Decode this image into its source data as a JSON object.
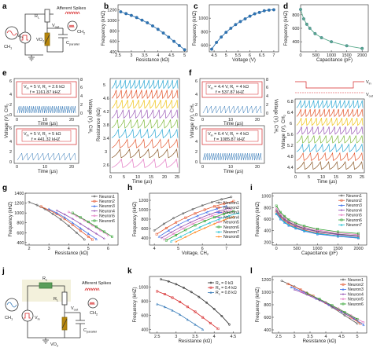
{
  "panel_labels": [
    "a",
    "b",
    "c",
    "d",
    "e",
    "f",
    "g",
    "h",
    "i",
    "j",
    "k",
    "l"
  ],
  "circuit_a": {
    "rl": "R",
    "rl_sub": "L",
    "vout": "V",
    "vout_sub": "out",
    "ch1": "CH",
    "ch1_sub": "1",
    "ch2": "CH",
    "ch2_sub": "2",
    "vin": "V",
    "vin_sub": "in",
    "vo2": "VO",
    "vo2_sub": "2",
    "cpar": "C",
    "cpar_sub": "parallel",
    "afferent": "Afferent Spikes"
  },
  "circuit_j": {
    "rc": "R",
    "rc_sub": "c",
    "rl": "R",
    "rl_sub": "L",
    "vout": "V",
    "vout_sub": "out",
    "ch1": "CH",
    "ch1_sub": "1",
    "ch2": "CH",
    "ch2_sub": "2",
    "vin": "V",
    "vin_sub": "in",
    "vo2": "VO",
    "vo2_sub": "2",
    "cpar": "C",
    "cpar_sub": "parallel",
    "afferent": "Afferent Spikes"
  },
  "panel_e": {
    "top": {
      "line1": "V",
      "line1_sub": "in",
      "line1_rest": " = 5 V, R",
      "line1_sub2": "L",
      "line1_rest2": " = 2.6 kΩ",
      "line2": "f = 1161.87 kHZ"
    },
    "bottom": {
      "line1": "V",
      "line1_sub": "in",
      "line1_rest": " = 5 V, R",
      "line1_sub2": "L",
      "line1_rest2": " = 5 kΩ",
      "line2": "f = 441.32 kHZ"
    },
    "ylabel_left": "Voltage (V), CH",
    "ylabel_left_sub": "2",
    "ylabel_right": "Voltage (V), CH",
    "ylabel_right_sub": "1",
    "xlabel": "Time (μs)",
    "yticks": [
      "6",
      "4",
      "2",
      "0"
    ],
    "yticks_right": [
      "8",
      "6",
      "4",
      "2",
      "0"
    ],
    "xticks": [
      "0",
      "10",
      "20"
    ],
    "stack_ylabel": "Resistance (kΩ)",
    "stack_yticks": [
      "5",
      "4.6",
      "4.2",
      "3.8",
      "3.4",
      "3",
      "2.6"
    ],
    "stack_xticks": [
      "0",
      "5",
      "10",
      "15",
      "20",
      "25"
    ],
    "stack_xlabel": "Time (μs)"
  },
  "panel_f": {
    "top": {
      "line1": "V",
      "line1_sub": "in",
      "line1_rest": " = 4.4 V, R",
      "line1_sub2": "L",
      "line1_rest2": " = 4 kΩ",
      "line2": "f = 537.87 kHZ"
    },
    "bottom": {
      "line1": "V",
      "line1_sub": "in",
      "line1_rest": " = 6.4 V, R",
      "line1_sub2": "L",
      "line1_rest2": " = 4 kΩ",
      "line2": "f = 1085.87 kHZ"
    },
    "ylabel_left": "Voltage (V), CH",
    "ylabel_left_sub": "2",
    "ylabel_right": "Voltage (V), CH",
    "ylabel_right_sub": "1",
    "xlabel": "Time (μs)",
    "yticks": [
      "6",
      "4",
      "2",
      "0"
    ],
    "yticks_right": [
      "8",
      "6",
      "4",
      "2",
      "0"
    ],
    "xticks": [
      "0",
      "10",
      "20"
    ],
    "stack_ylabel": "Voltage (V), CH",
    "stack_ylabel_sub": "2",
    "stack_yticks": [
      "6.8",
      "6.4",
      "6",
      "5.6",
      "5.2",
      "4.8",
      "4.4"
    ],
    "stack_xticks": [
      "0",
      "5",
      "10",
      "15",
      "20",
      "25"
    ],
    "stack_xlabel": "Time (μs)",
    "vin_tag": "V",
    "vin_tag_sub": "in",
    "vout_tag": "V",
    "vout_tag_sub": "out"
  },
  "colors": {
    "blue": "#2e75b6",
    "red": "#d62728",
    "teal": "#5aaa8c",
    "spike_colors": [
      "#2ca8d4",
      "#e4572e",
      "#f0c419",
      "#9b59b6",
      "#7fba3c",
      "#2ca8d4",
      "#e4572e",
      "#8b5a2b",
      "#e377c2"
    ],
    "neuron_colors": [
      "#555555",
      "#e4572e",
      "#3a6ee8",
      "#8e44ad",
      "#e377c2",
      "#2ca02c",
      "#17becf",
      "#ff7f0e"
    ]
  },
  "chart_data": [
    {
      "panel": "b",
      "type": "line",
      "xlabel": "Resistance (kΩ)",
      "ylabel": "Frequency (kHZ)",
      "xlim": [
        2.5,
        5.1
      ],
      "ylim": [
        400,
        1300
      ],
      "xticks": [
        2.5,
        3,
        3.5,
        4,
        4.5,
        5
      ],
      "yticks": [
        400,
        600,
        800,
        1000,
        1200
      ],
      "x": [
        2.6,
        2.8,
        3.0,
        3.2,
        3.4,
        3.6,
        3.8,
        4.0,
        4.2,
        4.4,
        4.6,
        4.8,
        5.0
      ],
      "y": [
        1165,
        1130,
        1095,
        1055,
        1005,
        955,
        895,
        830,
        760,
        680,
        600,
        520,
        440
      ]
    },
    {
      "panel": "c",
      "type": "line",
      "xlabel": "Voltage (V)",
      "ylabel": "Frequency (kHZ)",
      "xlim": [
        4.3,
        7.2
      ],
      "ylim": [
        500,
        1200
      ],
      "xticks": [
        4.5,
        5,
        5.5,
        6,
        6.5,
        7
      ],
      "yticks": [
        600,
        800,
        1000
      ],
      "x": [
        4.4,
        4.6,
        4.8,
        5.0,
        5.2,
        5.4,
        5.6,
        5.8,
        6.0,
        6.2,
        6.4,
        6.6,
        6.8,
        7.0
      ],
      "y": [
        540,
        640,
        720,
        790,
        850,
        905,
        950,
        990,
        1030,
        1065,
        1085,
        1110,
        1120,
        1125
      ]
    },
    {
      "panel": "d",
      "type": "line",
      "xlabel": "Capacitance (pF)",
      "ylabel": "Frequency (kHZ)",
      "xlim": [
        0,
        2200
      ],
      "ylim": [
        250,
        950
      ],
      "xticks": [
        0,
        500,
        1000,
        1500,
        2000
      ],
      "yticks": [
        400,
        600,
        800
      ],
      "x": [
        0,
        100,
        200,
        300,
        470,
        680,
        1000,
        1500,
        2000
      ],
      "y": [
        880,
        740,
        660,
        600,
        520,
        460,
        400,
        340,
        300
      ]
    },
    {
      "panel": "g",
      "type": "line",
      "xlabel": "Resistance (kΩ)",
      "ylabel": "Frequency (kHZ)",
      "xlim": [
        1.8,
        6.5
      ],
      "ylim": [
        350,
        1400
      ],
      "xticks": [
        2,
        3,
        4,
        5,
        6
      ],
      "yticks": [
        400,
        600,
        800,
        1000,
        1200,
        1400
      ],
      "series": [
        {
          "name": "Neuron1",
          "x": [
            2.0,
            2.4,
            2.8,
            3.2,
            3.6,
            4.0,
            4.4,
            4.8
          ],
          "y": [
            1220,
            1160,
            1080,
            980,
            870,
            740,
            600,
            460
          ]
        },
        {
          "name": "Neuron2",
          "x": [
            2.6,
            3.0,
            3.4,
            3.8,
            4.2,
            4.6,
            5.0,
            5.2
          ],
          "y": [
            1130,
            1060,
            980,
            880,
            760,
            640,
            520,
            460
          ]
        },
        {
          "name": "Neuron3",
          "x": [
            3.0,
            3.4,
            3.8,
            4.2,
            4.6,
            5.0,
            5.4
          ],
          "y": [
            1080,
            1000,
            910,
            800,
            690,
            580,
            470
          ]
        },
        {
          "name": "Neuron4",
          "x": [
            3.4,
            3.8,
            4.2,
            4.6,
            5.0,
            5.4,
            5.8
          ],
          "y": [
            1050,
            970,
            880,
            780,
            680,
            580,
            480
          ]
        },
        {
          "name": "Neuron5",
          "x": [
            4.0,
            4.4,
            4.8,
            5.2,
            5.6,
            6.0
          ],
          "y": [
            1020,
            940,
            850,
            750,
            650,
            550
          ]
        },
        {
          "name": "Neuron6",
          "x": [
            4.2,
            4.6,
            5.0,
            5.4,
            5.8,
            6.2
          ],
          "y": [
            1000,
            910,
            820,
            720,
            620,
            520
          ]
        }
      ]
    },
    {
      "panel": "h",
      "type": "line",
      "xlabel": "Voltage, CH",
      "xlabel_sub": "2",
      "ylabel": "Frequency (kHZ)",
      "xlim": [
        3.8,
        7.6
      ],
      "ylim": [
        250,
        1350
      ],
      "xticks": [
        4,
        5,
        6,
        7
      ],
      "yticks": [
        400,
        600,
        800,
        1000,
        1200
      ],
      "series": [
        {
          "name": "Neuron1",
          "x": [
            4.0,
            4.4,
            4.8,
            5.2,
            5.6,
            6.0,
            6.4,
            6.8,
            7.2
          ],
          "y": [
            560,
            700,
            820,
            920,
            1010,
            1090,
            1160,
            1220,
            1270
          ]
        },
        {
          "name": "Neuron2",
          "x": [
            4.1,
            4.5,
            4.9,
            5.3,
            5.7,
            6.1,
            6.5,
            6.9,
            7.3
          ],
          "y": [
            480,
            610,
            730,
            830,
            920,
            1000,
            1070,
            1130,
            1180
          ]
        },
        {
          "name": "Neuron3",
          "x": [
            4.2,
            4.6,
            5.0,
            5.4,
            5.8,
            6.2,
            6.6,
            7.0
          ],
          "y": [
            430,
            560,
            680,
            780,
            870,
            950,
            1020,
            1080
          ]
        },
        {
          "name": "Neuron4",
          "x": [
            4.3,
            4.7,
            5.1,
            5.5,
            5.9,
            6.3,
            6.7,
            7.1
          ],
          "y": [
            400,
            520,
            630,
            730,
            820,
            900,
            970,
            1030
          ]
        },
        {
          "name": "Neuron5",
          "x": [
            4.4,
            4.8,
            5.2,
            5.6,
            6.0,
            6.4,
            6.8,
            7.2
          ],
          "y": [
            370,
            490,
            600,
            700,
            790,
            870,
            940,
            1000
          ]
        },
        {
          "name": "Neuron6",
          "x": [
            4.5,
            4.9,
            5.3,
            5.7,
            6.1,
            6.5,
            6.9,
            7.3
          ],
          "y": [
            350,
            460,
            570,
            670,
            760,
            840,
            910,
            970
          ]
        },
        {
          "name": "Neuron7",
          "x": [
            4.7,
            5.1,
            5.5,
            5.9,
            6.3,
            6.7,
            7.1,
            7.5
          ],
          "y": [
            330,
            430,
            530,
            630,
            720,
            800,
            870,
            930
          ]
        },
        {
          "name": "Neuron8",
          "x": [
            4.9,
            5.3,
            5.7,
            6.1,
            6.5,
            6.9,
            7.3
          ],
          "y": [
            320,
            420,
            520,
            610,
            700,
            780,
            850
          ]
        }
      ]
    },
    {
      "panel": "i",
      "type": "line",
      "xlabel": "Capacitance (pF)",
      "ylabel": "Frequency (kHZ)",
      "xlim": [
        -100,
        2200
      ],
      "ylim": [
        150,
        1050
      ],
      "xticks": [
        0,
        500,
        1000,
        1500,
        2000
      ],
      "yticks": [
        200,
        400,
        600,
        800,
        1000
      ],
      "series": [
        {
          "name": "Neuron1",
          "x": [
            0,
            100,
            200,
            300,
            470,
            680,
            1000,
            1500,
            2000
          ],
          "y": [
            760,
            660,
            600,
            550,
            490,
            440,
            390,
            340,
            310
          ]
        },
        {
          "name": "Neuron2",
          "x": [
            0,
            100,
            200,
            300,
            470,
            680,
            1000,
            1500,
            2000
          ],
          "y": [
            720,
            630,
            570,
            520,
            460,
            410,
            360,
            310,
            280
          ]
        },
        {
          "name": "Neuron3",
          "x": [
            0,
            100,
            200,
            300,
            470,
            680,
            1000,
            1500,
            2000
          ],
          "y": [
            690,
            600,
            540,
            490,
            440,
            390,
            340,
            300,
            270
          ]
        },
        {
          "name": "Neuron4",
          "x": [
            0,
            100,
            200,
            300,
            470,
            680,
            1000,
            1500,
            2000
          ],
          "y": [
            740,
            650,
            590,
            540,
            480,
            430,
            380,
            330,
            300
          ]
        },
        {
          "name": "Neuron5",
          "x": [
            0,
            100,
            200,
            300,
            470,
            680,
            1000,
            1500,
            2000
          ],
          "y": [
            790,
            690,
            630,
            570,
            510,
            460,
            410,
            360,
            330
          ]
        },
        {
          "name": "Neuron6",
          "x": [
            0,
            100,
            200,
            300,
            470,
            680,
            1000,
            1500,
            2000
          ],
          "y": [
            830,
            720,
            650,
            590,
            530,
            480,
            430,
            380,
            350
          ]
        },
        {
          "name": "Neuron7",
          "x": [
            0,
            100,
            200,
            300,
            470,
            680,
            1000,
            1500,
            2000
          ],
          "y": [
            700,
            610,
            550,
            500,
            450,
            400,
            350,
            310,
            280
          ]
        }
      ]
    },
    {
      "panel": "k",
      "type": "line",
      "xlabel": "Resistance (kΩ)",
      "ylabel": "Frequency (kHZ)",
      "xlim": [
        2.3,
        4.7
      ],
      "ylim": [
        350,
        1150
      ],
      "xticks": [
        2.5,
        3,
        3.5,
        4,
        4.5
      ],
      "yticks": [
        400,
        600,
        800,
        1000
      ],
      "series": [
        {
          "name": "R_c = 0 kΩ",
          "label_main": "R",
          "label_sub": "c",
          "label_rest": " = 0 kΩ",
          "x": [
            2.6,
            2.8,
            3.0,
            3.2,
            3.4,
            3.6,
            3.8,
            4.0,
            4.2,
            4.4
          ],
          "y": [
            1110,
            1080,
            1040,
            990,
            930,
            860,
            780,
            690,
            590,
            470
          ]
        },
        {
          "name": "R_c = 0.4 kΩ",
          "label_main": "R",
          "label_sub": "c",
          "label_rest": " = 0.4 kΩ",
          "x": [
            2.5,
            2.7,
            2.9,
            3.1,
            3.3,
            3.5,
            3.7,
            3.9,
            4.1
          ],
          "y": [
            940,
            900,
            850,
            790,
            720,
            650,
            570,
            490,
            410
          ]
        },
        {
          "name": "R_c = 0.8 kΩ",
          "label_main": "R",
          "label_sub": "c",
          "label_rest": " = 0.8 kΩ",
          "x": [
            2.5,
            2.7,
            2.9,
            3.1,
            3.3,
            3.5,
            3.7
          ],
          "y": [
            760,
            720,
            670,
            610,
            540,
            470,
            400
          ]
        }
      ]
    },
    {
      "panel": "l",
      "type": "line",
      "xlabel": "Resistance (kΩ)",
      "ylabel": "Frequency (kHZ)",
      "xlim": [
        2.3,
        5.3
      ],
      "ylim": [
        350,
        1250
      ],
      "xticks": [
        2.5,
        3,
        3.5,
        4,
        4.5,
        5
      ],
      "yticks": [
        400,
        600,
        800,
        1000,
        1200
      ],
      "series": [
        {
          "name": "Neuron1",
          "x": [
            2.6,
            3.0,
            3.4,
            3.8,
            4.2,
            4.6,
            5.0
          ],
          "y": [
            1180,
            1090,
            990,
            880,
            760,
            630,
            500
          ]
        },
        {
          "name": "Neuron2",
          "x": [
            2.8,
            3.2,
            3.6,
            4.0,
            4.4,
            4.8,
            5.1
          ],
          "y": [
            1130,
            1040,
            940,
            830,
            720,
            600,
            500
          ]
        },
        {
          "name": "Neuron3",
          "x": [
            2.9,
            3.3,
            3.7,
            4.1,
            4.5,
            4.9,
            5.2
          ],
          "y": [
            1080,
            1000,
            900,
            800,
            690,
            580,
            480
          ]
        },
        {
          "name": "Neuron4",
          "x": [
            3.0,
            3.4,
            3.8,
            4.2,
            4.6,
            5.0
          ],
          "y": [
            1040,
            960,
            870,
            770,
            660,
            550
          ]
        },
        {
          "name": "Neuron5",
          "x": [
            3.2,
            3.6,
            4.0,
            4.4,
            4.8,
            5.2
          ],
          "y": [
            1010,
            930,
            840,
            740,
            630,
            520
          ]
        },
        {
          "name": "Neuron6",
          "x": [
            3.4,
            3.8,
            4.2,
            4.6,
            5.0
          ],
          "y": [
            980,
            890,
            790,
            680,
            570
          ]
        }
      ]
    }
  ]
}
